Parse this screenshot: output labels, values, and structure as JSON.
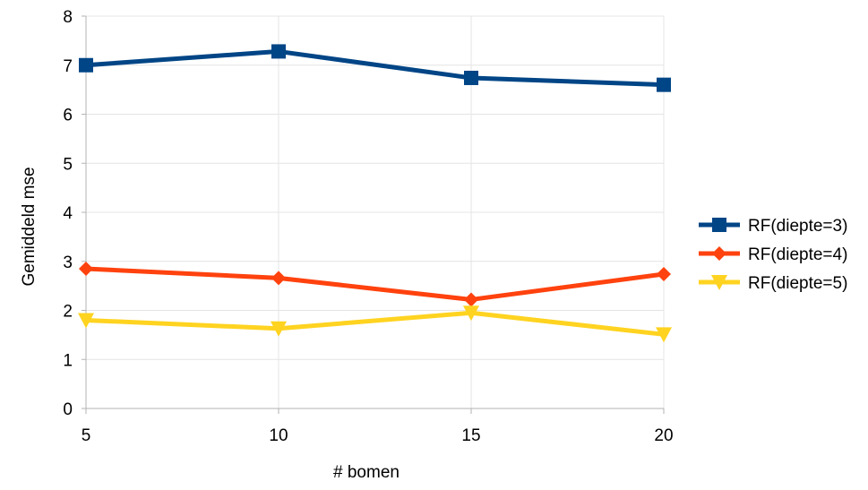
{
  "chart_data": {
    "type": "line",
    "title": "",
    "xlabel": "# bomen",
    "ylabel": "Gemiddeld mse",
    "x": [
      5,
      10,
      15,
      20
    ],
    "x_tick_labels": [
      "5",
      "10",
      "15",
      "20"
    ],
    "ylim": [
      0,
      8
    ],
    "y_ticks": [
      0,
      1,
      2,
      3,
      4,
      5,
      6,
      7,
      8
    ],
    "grid": true,
    "legend_position": "right",
    "series": [
      {
        "name": "RF(diepte=3)",
        "values": [
          7.0,
          7.28,
          6.74,
          6.6
        ],
        "color": "#004586",
        "marker": "square"
      },
      {
        "name": "RF(diepte=4)",
        "values": [
          2.85,
          2.66,
          2.22,
          2.74
        ],
        "color": "#ff420e",
        "marker": "diamond"
      },
      {
        "name": "RF(diepte=5)",
        "values": [
          1.8,
          1.63,
          1.95,
          1.51
        ],
        "color": "#ffd320",
        "marker": "triangle-down"
      }
    ]
  }
}
